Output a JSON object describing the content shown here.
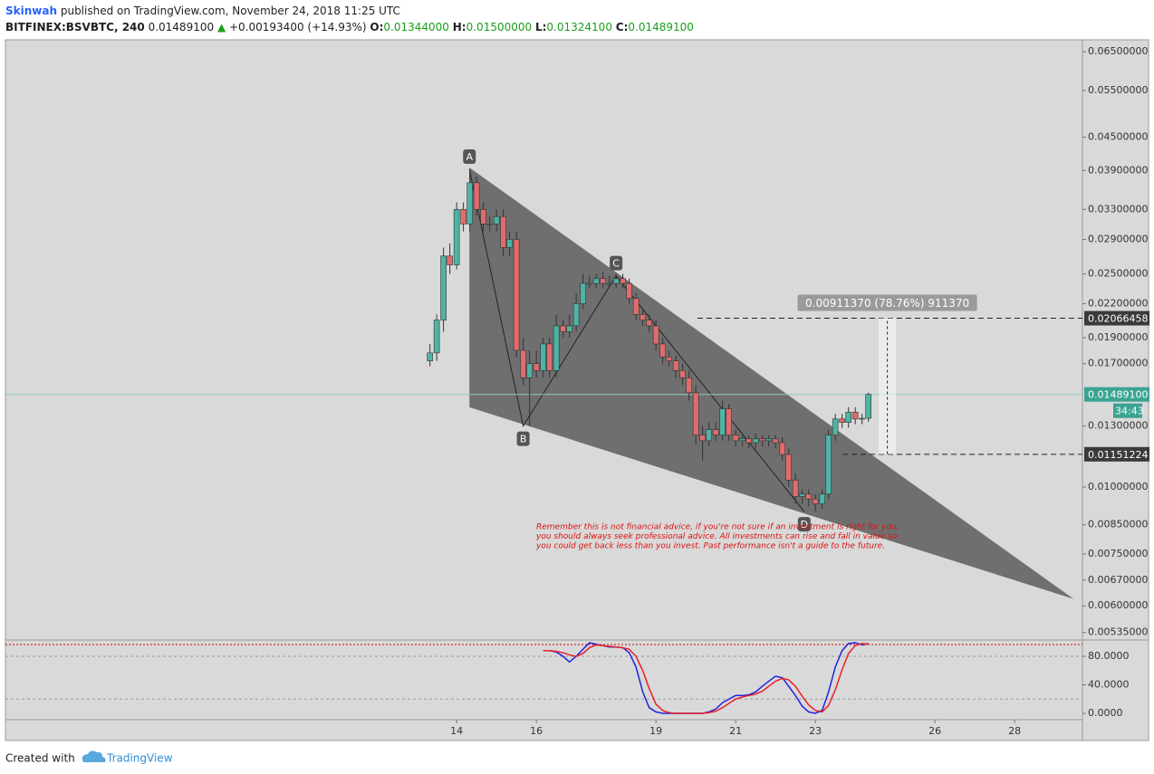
{
  "header": {
    "author": "Skinwah",
    "published": "published on TradingView.com, November 24, 2018 11:25 UTC",
    "symbol": "BITFINEX:BSVBTC, 240",
    "price": "0.01489100",
    "change": "+0.00193400 (+14.93%)",
    "ohlc": [
      [
        "O:",
        "0.01344000"
      ],
      [
        "H:",
        "0.01500000"
      ],
      [
        "L:",
        "0.01324100"
      ],
      [
        "C:",
        "0.01489100"
      ]
    ]
  },
  "chart_data": [
    {
      "type": "candlestick",
      "x": [
        13.33,
        13.5,
        13.67,
        13.83,
        14,
        14.17,
        14.33,
        14.5,
        14.67,
        14.83,
        15,
        15.17,
        15.33,
        15.5,
        15.67,
        15.83,
        16,
        16.17,
        16.33,
        16.5,
        16.67,
        16.83,
        17,
        17.17,
        17.33,
        17.5,
        17.67,
        17.83,
        18,
        18.17,
        18.33,
        18.5,
        18.67,
        18.83,
        19,
        19.17,
        19.33,
        19.5,
        19.67,
        19.83,
        20,
        20.17,
        20.33,
        20.5,
        20.67,
        20.83,
        21,
        21.17,
        21.33,
        21.5,
        21.67,
        21.83,
        22,
        22.17,
        22.33,
        22.5,
        22.67,
        22.83,
        23,
        23.17,
        23.33,
        23.5,
        23.67,
        23.83,
        24,
        24.17,
        24.33
      ],
      "open": [
        0.0172,
        0.0178,
        0.0205,
        0.027,
        0.026,
        0.033,
        0.031,
        0.037,
        0.033,
        0.031,
        0.031,
        0.032,
        0.028,
        0.029,
        0.018,
        0.016,
        0.017,
        0.0165,
        0.0185,
        0.0165,
        0.02,
        0.0195,
        0.02,
        0.022,
        0.024,
        0.024,
        0.0245,
        0.024,
        0.024,
        0.0245,
        0.024,
        0.0225,
        0.021,
        0.0205,
        0.02,
        0.0185,
        0.0175,
        0.0172,
        0.0165,
        0.016,
        0.015,
        0.0125,
        0.0122,
        0.0128,
        0.0125,
        0.014,
        0.0125,
        0.0122,
        0.0123,
        0.0121,
        0.0123,
        0.0122,
        0.0123,
        0.0121,
        0.0115,
        0.0103,
        0.0096,
        0.0097,
        0.0095,
        0.0093,
        0.0097,
        0.0125,
        0.0134,
        0.0132,
        0.0138,
        0.0134,
        0.01344
      ],
      "high": [
        0.0185,
        0.021,
        0.028,
        0.0285,
        0.034,
        0.034,
        0.039,
        0.038,
        0.034,
        0.032,
        0.033,
        0.033,
        0.03,
        0.03,
        0.019,
        0.018,
        0.018,
        0.019,
        0.019,
        0.021,
        0.0205,
        0.021,
        0.023,
        0.025,
        0.0248,
        0.025,
        0.0252,
        0.0248,
        0.025,
        0.025,
        0.0245,
        0.023,
        0.0215,
        0.021,
        0.0205,
        0.019,
        0.018,
        0.0176,
        0.017,
        0.0165,
        0.0155,
        0.013,
        0.0132,
        0.0132,
        0.0145,
        0.0143,
        0.0128,
        0.0126,
        0.0125,
        0.0126,
        0.0125,
        0.0125,
        0.0125,
        0.0124,
        0.0118,
        0.0106,
        0.0099,
        0.0099,
        0.0097,
        0.0099,
        0.0128,
        0.0137,
        0.0137,
        0.0141,
        0.0141,
        0.0137,
        0.015
      ],
      "low": [
        0.0168,
        0.0172,
        0.0195,
        0.025,
        0.0255,
        0.03,
        0.03,
        0.032,
        0.03,
        0.03,
        0.03,
        0.027,
        0.027,
        0.0175,
        0.0155,
        0.013,
        0.016,
        0.016,
        0.016,
        0.016,
        0.019,
        0.019,
        0.0195,
        0.0215,
        0.0235,
        0.0235,
        0.0235,
        0.0235,
        0.0235,
        0.0235,
        0.022,
        0.0205,
        0.02,
        0.0195,
        0.018,
        0.017,
        0.0168,
        0.016,
        0.0155,
        0.0145,
        0.012,
        0.0112,
        0.0119,
        0.0122,
        0.0122,
        0.0122,
        0.0119,
        0.0119,
        0.0118,
        0.0118,
        0.0119,
        0.0119,
        0.0118,
        0.0112,
        0.01,
        0.0093,
        0.0093,
        0.0092,
        0.009,
        0.0091,
        0.0095,
        0.0122,
        0.0129,
        0.0129,
        0.0131,
        0.0131,
        0.013241
      ],
      "close": [
        0.0178,
        0.0205,
        0.027,
        0.026,
        0.033,
        0.031,
        0.037,
        0.033,
        0.031,
        0.031,
        0.032,
        0.028,
        0.029,
        0.018,
        0.016,
        0.017,
        0.0165,
        0.0185,
        0.0165,
        0.02,
        0.0195,
        0.02,
        0.022,
        0.024,
        0.024,
        0.0245,
        0.024,
        0.024,
        0.0245,
        0.024,
        0.0225,
        0.021,
        0.0205,
        0.02,
        0.0185,
        0.0175,
        0.0172,
        0.0165,
        0.016,
        0.015,
        0.0125,
        0.0122,
        0.0128,
        0.0125,
        0.014,
        0.0125,
        0.0122,
        0.0123,
        0.0121,
        0.0123,
        0.0122,
        0.0123,
        0.0121,
        0.0115,
        0.0103,
        0.0096,
        0.0097,
        0.0095,
        0.0093,
        0.0097,
        0.0125,
        0.0134,
        0.0132,
        0.0138,
        0.0134,
        0.01344,
        0.014891
      ],
      "up_color": "#4fb3a6",
      "down_color": "#e06c6c",
      "log_scale": true,
      "xlim": [
        2.68,
        29.7
      ],
      "xticks": [
        14,
        16,
        19,
        21,
        23,
        26,
        28
      ],
      "ylim": [
        0.0052,
        0.0684
      ],
      "yticks": [
        {
          "value": 0.065,
          "label": "0.06500000"
        },
        {
          "value": 0.055,
          "label": "0.05500000"
        },
        {
          "value": 0.045,
          "label": "0.04500000"
        },
        {
          "value": 0.039,
          "label": "0.03900000"
        },
        {
          "value": 0.033,
          "label": "0.03300000"
        },
        {
          "value": 0.029,
          "label": "0.02900000"
        },
        {
          "value": 0.025,
          "label": "0.02500000"
        },
        {
          "value": 0.022,
          "label": "0.02200000"
        },
        {
          "value": 0.019,
          "label": "0.01900000"
        },
        {
          "value": 0.017,
          "label": "0.01700000"
        },
        {
          "value": 0.013,
          "label": "0.01300000"
        },
        {
          "value": 0.01,
          "label": "0.01000000"
        },
        {
          "value": 0.0085,
          "label": "0.00850000"
        },
        {
          "value": 0.0075,
          "label": "0.00750000"
        },
        {
          "value": 0.0067,
          "label": "0.00670000"
        },
        {
          "value": 0.006,
          "label": "0.00600000"
        },
        {
          "value": 0.00535,
          "label": "0.00535000"
        }
      ],
      "last_price": {
        "value": 0.014891,
        "label": "0.01489100"
      },
      "countdown": "34:43",
      "levels": {
        "prices": [
          0.02066458,
          0.01151224
        ],
        "from": [
          20.04,
          23.68
        ]
      },
      "measure": {
        "x": [
          24.59,
          25.02
        ],
        "label": "0.00911370 (78.76%) 911370"
      },
      "pattern": {
        "labels": [
          "A",
          "B",
          "C",
          "D"
        ],
        "x": [
          14.32,
          15.67,
          18.0,
          22.72
        ],
        "y": [
          0.0392,
          0.013,
          0.0248,
          0.009
        ]
      },
      "wedge": {
        "x": [
          14.32,
          14.32,
          29.48
        ],
        "y": [
          0.0395,
          0.01409,
          0.00618
        ]
      },
      "disclaimer": [
        "Remember this is not financial advice, if you're not sure if an investment is right for you,",
        "you should always seek professional advice. All investments can rise and fall in value so",
        "you could get back less than you invest. Past performance isn't a guide to the future."
      ]
    },
    {
      "type": "line",
      "ylim": [
        -8.9,
        101.6
      ],
      "yticks": [
        {
          "value": 0,
          "label": "0.0000"
        },
        {
          "value": 40,
          "label": "40.0000"
        },
        {
          "value": 80,
          "label": "80.0000"
        }
      ],
      "levels": [
        20,
        80
      ],
      "series": [
        {
          "color": "#2222dd",
          "values": [
            null,
            null,
            null,
            null,
            null,
            null,
            null,
            null,
            null,
            null,
            null,
            null,
            null,
            null,
            null,
            null,
            null,
            88,
            88,
            86,
            80,
            72,
            80,
            90,
            99,
            97,
            95,
            93,
            93,
            92,
            85,
            65,
            30,
            8,
            2,
            0,
            0,
            0,
            0,
            0,
            0,
            0,
            2,
            6,
            15,
            20,
            25,
            25,
            26,
            30,
            38,
            45,
            52,
            50,
            38,
            25,
            10,
            2,
            0,
            4,
            30,
            65,
            88,
            98,
            99,
            96,
            98
          ]
        },
        {
          "color": "#e8202a",
          "values": [
            null,
            null,
            null,
            null,
            null,
            null,
            null,
            null,
            null,
            null,
            null,
            null,
            null,
            null,
            null,
            null,
            null,
            88,
            88,
            87,
            85,
            82,
            80,
            84,
            92,
            96,
            95,
            94,
            93,
            92,
            90,
            80,
            60,
            35,
            13,
            4,
            1,
            0,
            0,
            0,
            0,
            0,
            1,
            3,
            8,
            14,
            20,
            23,
            25,
            27,
            31,
            38,
            45,
            49,
            47,
            38,
            24,
            12,
            4,
            2,
            11,
            33,
            61,
            84,
            95,
            98,
            97
          ]
        }
      ]
    }
  ],
  "footer": {
    "created": "Created with",
    "brand": "TradingView"
  }
}
